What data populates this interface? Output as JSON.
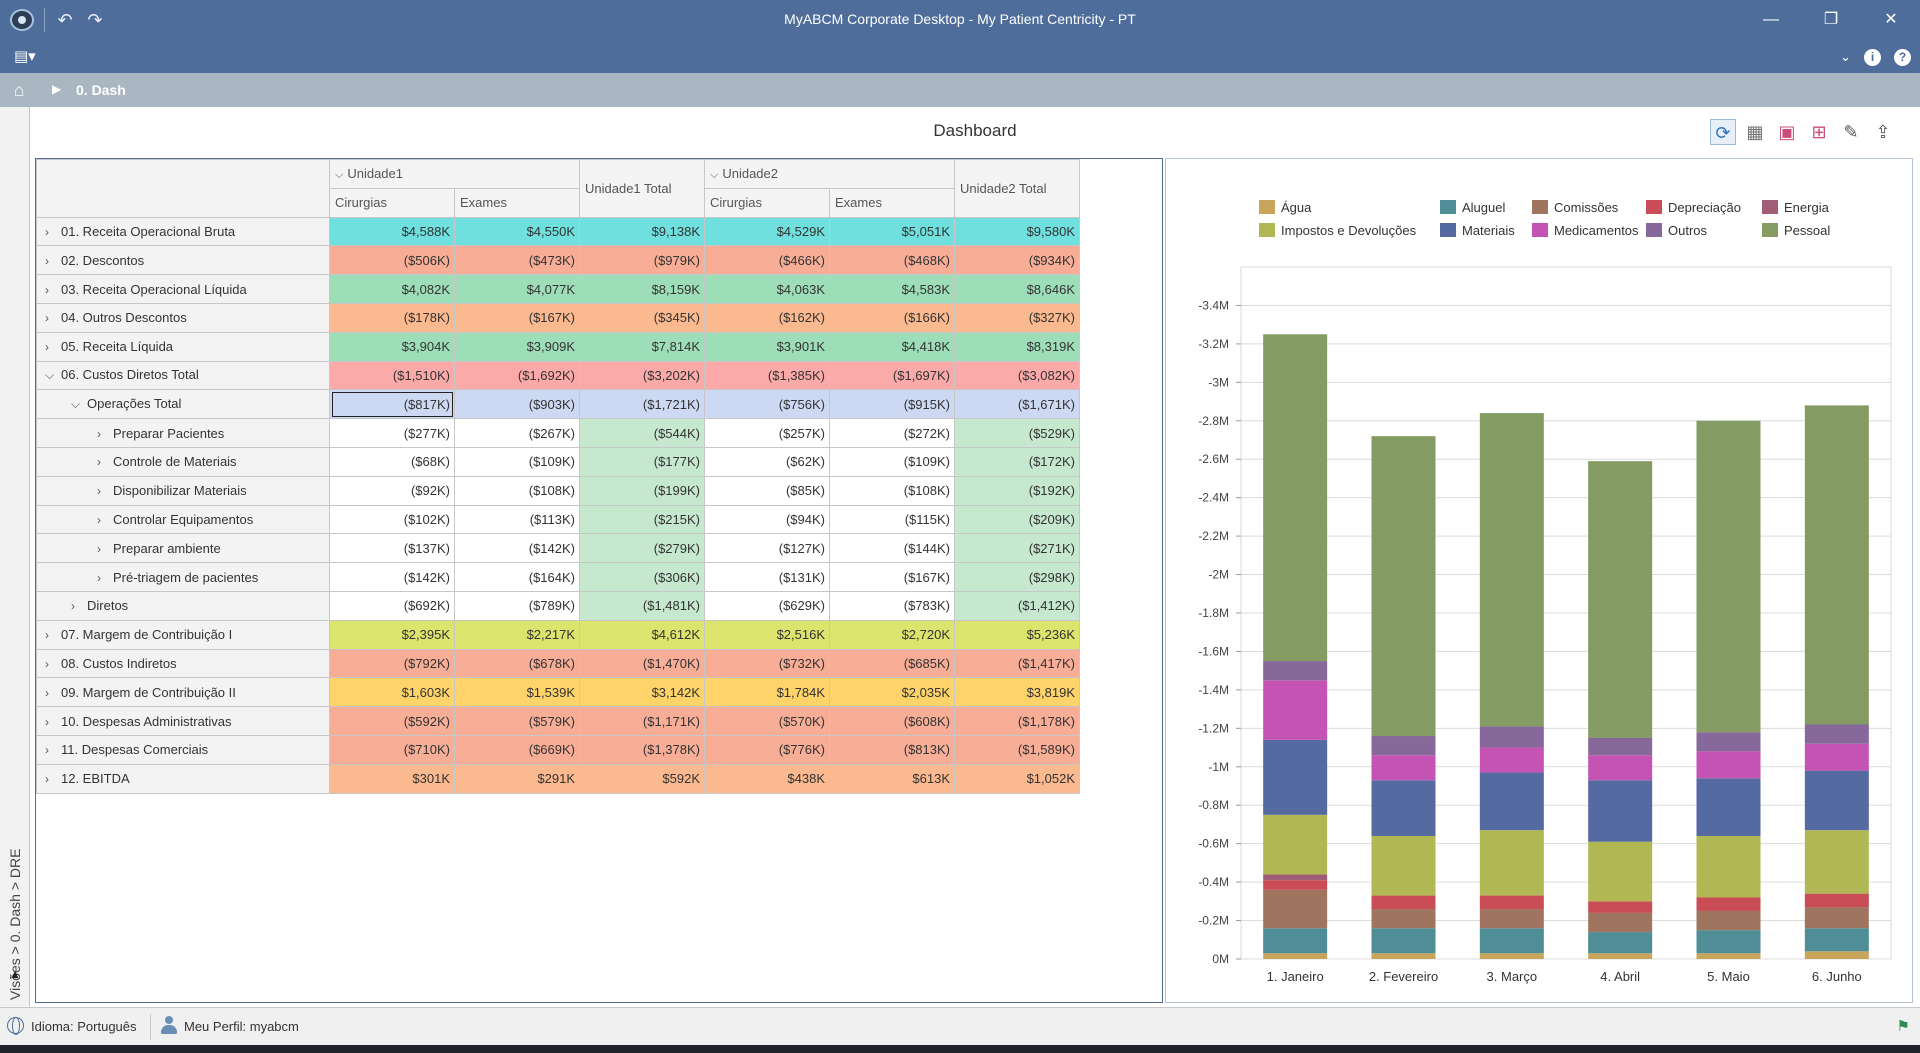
{
  "window": {
    "title": "MyABCM Corporate Desktop - My Patient Centricity - PT"
  },
  "breadcrumb": {
    "current": "0. Dash"
  },
  "sidepath": "Visões > 0. Dash > DRE",
  "dashboard": {
    "title": "Dashboard"
  },
  "pivot": {
    "col_groups": [
      {
        "label": "Unidade1",
        "total_label": "Unidade1 Total"
      },
      {
        "label": "Unidade2",
        "total_label": "Unidade2 Total"
      }
    ],
    "measures": [
      "Cirurgias",
      "Exames"
    ],
    "rows": [
      {
        "label": "01. Receita Operacional Bruta",
        "level": 0,
        "state": "collapsed",
        "color": "#6fe0de",
        "values": [
          "$4,588K",
          "$4,550K",
          "$9,138K",
          "$4,529K",
          "$5,051K",
          "$9,580K"
        ]
      },
      {
        "label": "02. Descontos",
        "level": 0,
        "state": "collapsed",
        "color": "#f8ae96",
        "values": [
          "($506K)",
          "($473K)",
          "($979K)",
          "($466K)",
          "($468K)",
          "($934K)"
        ]
      },
      {
        "label": "03. Receita Operacional Líquida",
        "level": 0,
        "state": "collapsed",
        "color": "#9ddeb8",
        "values": [
          "$4,082K",
          "$4,077K",
          "$8,159K",
          "$4,063K",
          "$4,583K",
          "$8,646K"
        ]
      },
      {
        "label": "04. Outros Descontos",
        "level": 0,
        "state": "collapsed",
        "color": "#fbb98f",
        "values": [
          "($178K)",
          "($167K)",
          "($345K)",
          "($162K)",
          "($166K)",
          "($327K)"
        ]
      },
      {
        "label": "05. Receita Líquida",
        "level": 0,
        "state": "collapsed",
        "color": "#9ddeb8",
        "values": [
          "$3,904K",
          "$3,909K",
          "$7,814K",
          "$3,901K",
          "$4,418K",
          "$8,319K"
        ]
      },
      {
        "label": "06. Custos Diretos Total",
        "level": 0,
        "state": "expanded",
        "color": "#fbaaa9",
        "values": [
          "($1,510K)",
          "($1,692K)",
          "($3,202K)",
          "($1,385K)",
          "($1,697K)",
          "($3,082K)"
        ]
      },
      {
        "label": "Operações Total",
        "level": 1,
        "state": "expanded",
        "color": "#cdd9f2",
        "values": [
          "($817K)",
          "($903K)",
          "($1,721K)",
          "($756K)",
          "($915K)",
          "($1,671K)"
        ]
      },
      {
        "label": "Preparar Pacientes",
        "level": 2,
        "state": "collapsed",
        "color": "#ffffff",
        "values": [
          "($277K)",
          "($267K)",
          "($544K)",
          "($257K)",
          "($272K)",
          "($529K)"
        ]
      },
      {
        "label": "Controle de Materiais",
        "level": 2,
        "state": "collapsed",
        "color": "#ffffff",
        "values": [
          "($68K)",
          "($109K)",
          "($177K)",
          "($62K)",
          "($109K)",
          "($172K)"
        ]
      },
      {
        "label": "Disponibilizar Materiais",
        "level": 2,
        "state": "collapsed",
        "color": "#ffffff",
        "values": [
          "($92K)",
          "($108K)",
          "($199K)",
          "($85K)",
          "($108K)",
          "($192K)"
        ]
      },
      {
        "label": "Controlar Equipamentos",
        "level": 2,
        "state": "collapsed",
        "color": "#ffffff",
        "values": [
          "($102K)",
          "($113K)",
          "($215K)",
          "($94K)",
          "($115K)",
          "($209K)"
        ]
      },
      {
        "label": "Preparar ambiente",
        "level": 2,
        "state": "collapsed",
        "color": "#ffffff",
        "values": [
          "($137K)",
          "($142K)",
          "($279K)",
          "($127K)",
          "($144K)",
          "($271K)"
        ]
      },
      {
        "label": "Pré-triagem de pacientes",
        "level": 2,
        "state": "collapsed",
        "color": "#ffffff",
        "values": [
          "($142K)",
          "($164K)",
          "($306K)",
          "($131K)",
          "($167K)",
          "($298K)"
        ]
      },
      {
        "label": "Diretos",
        "level": 1,
        "state": "collapsed",
        "color": "#ffffff",
        "values": [
          "($692K)",
          "($789K)",
          "($1,481K)",
          "($629K)",
          "($783K)",
          "($1,412K)"
        ]
      },
      {
        "label": "07. Margem de Contribuição I",
        "level": 0,
        "state": "collapsed",
        "color": "#dde46d",
        "values": [
          "$2,395K",
          "$2,217K",
          "$4,612K",
          "$2,516K",
          "$2,720K",
          "$5,236K"
        ]
      },
      {
        "label": "08. Custos Indiretos",
        "level": 0,
        "state": "collapsed",
        "color": "#f8ae96",
        "values": [
          "($792K)",
          "($678K)",
          "($1,470K)",
          "($732K)",
          "($685K)",
          "($1,417K)"
        ]
      },
      {
        "label": "09. Margem de Contribuição II",
        "level": 0,
        "state": "collapsed",
        "color": "#fdd36a",
        "values": [
          "$1,603K",
          "$1,539K",
          "$3,142K",
          "$1,784K",
          "$2,035K",
          "$3,819K"
        ]
      },
      {
        "label": "10. Despesas Administrativas",
        "level": 0,
        "state": "collapsed",
        "color": "#f8ae96",
        "values": [
          "($592K)",
          "($579K)",
          "($1,171K)",
          "($570K)",
          "($608K)",
          "($1,178K)"
        ]
      },
      {
        "label": "11. Despesas Comerciais",
        "level": 0,
        "state": "collapsed",
        "color": "#f8ae96",
        "values": [
          "($710K)",
          "($669K)",
          "($1,378K)",
          "($776K)",
          "($813K)",
          "($1,589K)"
        ]
      },
      {
        "label": "12. EBITDA",
        "level": 0,
        "state": "collapsed",
        "color": "#fbb98f",
        "values": [
          "$301K",
          "$291K",
          "$592K",
          "$438K",
          "$613K",
          "$1,052K"
        ]
      }
    ]
  },
  "chart_data": {
    "type": "bar",
    "stacked": true,
    "categories": [
      "1. Janeiro",
      "2. Fevereiro",
      "3. Março",
      "4. Abril",
      "5. Maio",
      "6. Junho"
    ],
    "ylim": [
      0,
      -3.6
    ],
    "yticks": [
      "0M",
      "-0.2M",
      "-0.4M",
      "-0.6M",
      "-0.8M",
      "-1M",
      "-1.2M",
      "-1.4M",
      "-1.6M",
      "-1.8M",
      "-2M",
      "-2.2M",
      "-2.4M",
      "-2.6M",
      "-2.8M",
      "-3M",
      "-3.2M",
      "-3.4M"
    ],
    "grid": true,
    "legend_position": "top",
    "series": [
      {
        "name": "Água",
        "color": "#c9a55b",
        "values": [
          -0.03,
          -0.03,
          -0.03,
          -0.03,
          -0.03,
          -0.04
        ]
      },
      {
        "name": "Aluguel",
        "color": "#4f8d97",
        "values": [
          -0.13,
          -0.13,
          -0.13,
          -0.11,
          -0.12,
          -0.12
        ]
      },
      {
        "name": "Comissões",
        "color": "#a07560",
        "values": [
          -0.2,
          -0.1,
          -0.1,
          -0.1,
          -0.1,
          -0.11
        ]
      },
      {
        "name": "Depreciação",
        "color": "#c94c57",
        "values": [
          -0.05,
          -0.07,
          -0.07,
          -0.06,
          -0.07,
          -0.07
        ]
      },
      {
        "name": "Energia",
        "color": "#a25d76",
        "values": [
          -0.03,
          0,
          0,
          0,
          0,
          0
        ]
      },
      {
        "name": "Impostos e Devoluções",
        "color": "#b1b853",
        "values": [
          -0.31,
          -0.31,
          -0.34,
          -0.31,
          -0.32,
          -0.33
        ]
      },
      {
        "name": "Materiais",
        "color": "#556aa1",
        "values": [
          -0.39,
          -0.29,
          -0.3,
          -0.32,
          -0.3,
          -0.31
        ]
      },
      {
        "name": "Medicamentos",
        "color": "#c553b3",
        "values": [
          -0.31,
          -0.13,
          -0.13,
          -0.13,
          -0.14,
          -0.14
        ]
      },
      {
        "name": "Outros",
        "color": "#86689a",
        "values": [
          -0.1,
          -0.1,
          -0.11,
          -0.09,
          -0.1,
          -0.1
        ]
      },
      {
        "name": "Pessoal",
        "color": "#849b63",
        "values": [
          -1.7,
          -1.56,
          -1.63,
          -1.44,
          -1.62,
          -1.66
        ]
      }
    ]
  },
  "status": {
    "language": "Idioma: Português",
    "profile": "Meu Perfil: myabcm"
  }
}
